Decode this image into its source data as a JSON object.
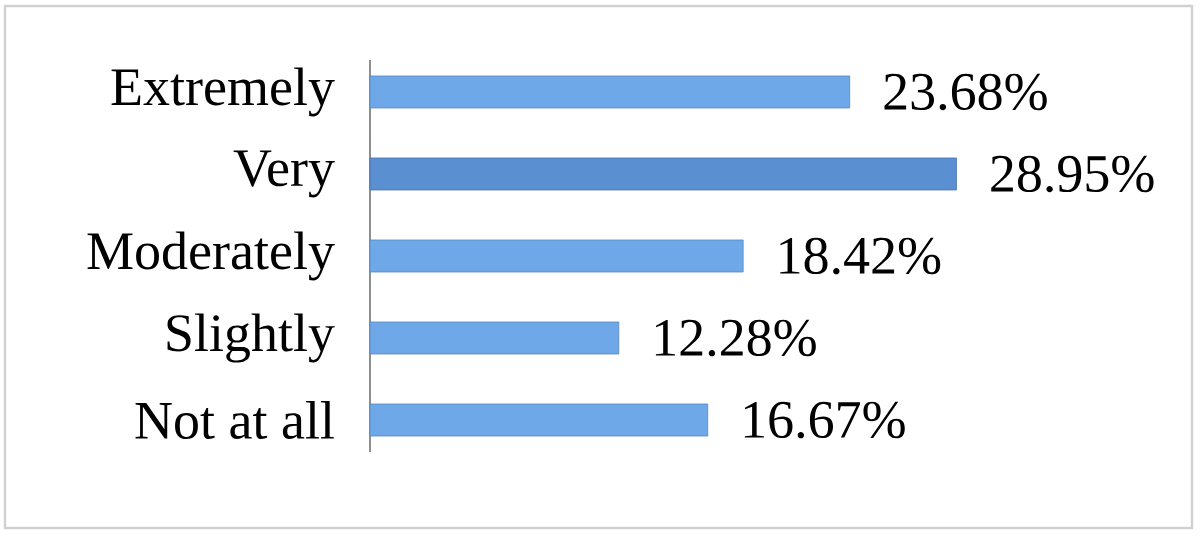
{
  "chart_data": {
    "type": "bar",
    "orientation": "horizontal",
    "categories": [
      "Extremely",
      "Very",
      "Moderately",
      "Slightly",
      "Not at all"
    ],
    "values": [
      23.68,
      28.95,
      18.42,
      12.28,
      16.67
    ],
    "colors": [
      "#6ea8e8",
      "#5a8fd2",
      "#6ea8e8",
      "#6ea8e8",
      "#6ea8e8"
    ],
    "value_labels": [
      "23.68%",
      "28.95%",
      "18.42%",
      "12.28%",
      "16.67%"
    ]
  }
}
